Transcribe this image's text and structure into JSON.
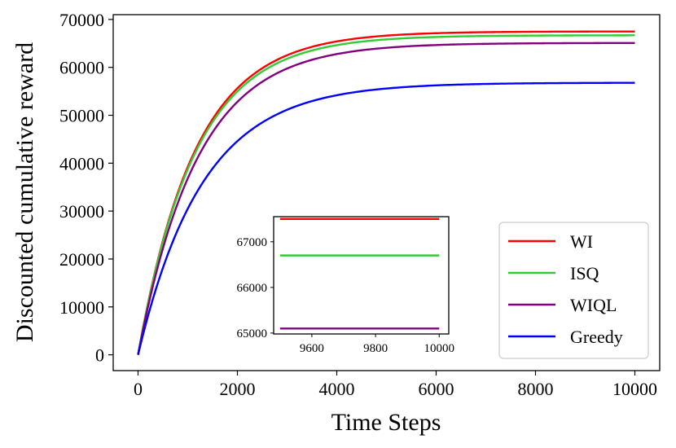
{
  "chart_data": {
    "type": "line",
    "xlabel": "Time Steps",
    "ylabel": "Discounted cumulative reward",
    "xlim": [
      -500,
      10500
    ],
    "ylim": [
      -3300,
      71000
    ],
    "xticks": [
      0,
      2000,
      4000,
      6000,
      8000,
      10000
    ],
    "yticks": [
      0,
      10000,
      20000,
      30000,
      40000,
      50000,
      60000,
      70000
    ],
    "grid": false,
    "legend_position": "bottom-right",
    "series": [
      {
        "name": "WI",
        "color": "#ff0000",
        "final_value": 67500,
        "tau": 1150,
        "x": [
          0,
          1000,
          2000,
          3000,
          4000,
          6000,
          8000,
          10000
        ],
        "y": [
          0,
          39490,
          55690,
          62340,
          65070,
          66830,
          67350,
          67480
        ]
      },
      {
        "name": "ISQ",
        "color": "#33cc33",
        "final_value": 66700,
        "tau": 1150,
        "x": [
          0,
          1000,
          2000,
          3000,
          4000,
          6000,
          8000,
          10000
        ],
        "y": [
          0,
          38870,
          55000,
          61600,
          64290,
          66040,
          66550,
          66680
        ]
      },
      {
        "name": "WIQL",
        "color": "#800080",
        "final_value": 65100,
        "tau": 1200,
        "x": [
          0,
          1000,
          2000,
          3000,
          4000,
          6000,
          8000,
          10000
        ],
        "y": [
          0,
          36910,
          52960,
          59910,
          62930,
          64880,
          65030,
          65090
        ]
      },
      {
        "name": "Greedy",
        "color": "#0000ff",
        "final_value": 56800,
        "tau": 1300,
        "x": [
          0,
          1000,
          2000,
          3000,
          4000,
          6000,
          8000,
          10000
        ],
        "y": [
          0,
          30590,
          44710,
          51210,
          54220,
          56270,
          56700,
          56790
        ]
      }
    ],
    "inset": {
      "xlim": [
        9480,
        10030
      ],
      "ylim": [
        64980,
        67550
      ],
      "xticks": [
        9600,
        9800,
        10000
      ],
      "yticks": [
        65000,
        66000,
        67000
      ],
      "series_values": {
        "WI": 67500,
        "ISQ": 66700,
        "WIQL": 65100
      }
    }
  }
}
